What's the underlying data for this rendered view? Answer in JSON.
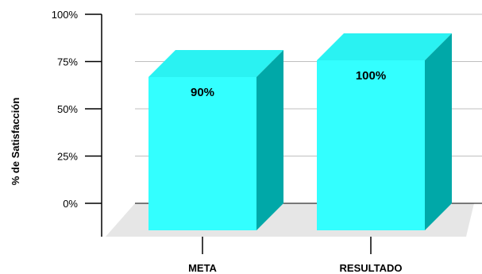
{
  "chart_data": {
    "type": "bar",
    "categories": [
      "META",
      "RESULTADO"
    ],
    "values": [
      90,
      100
    ],
    "data_labels": [
      "90%",
      "100%"
    ],
    "ylabel": "% de Satisfacción",
    "yticks": [
      "0%",
      "25%",
      "50%",
      "75%",
      "100%"
    ],
    "ylim": [
      0,
      100
    ],
    "grid": true,
    "three_d": true,
    "colors": {
      "front": "#33FFFF",
      "top": "#2AF2F2",
      "side": "#00A8A8",
      "floor": "#E6E6E6",
      "grid": "#BFBFBF",
      "axis": "#000000"
    }
  }
}
